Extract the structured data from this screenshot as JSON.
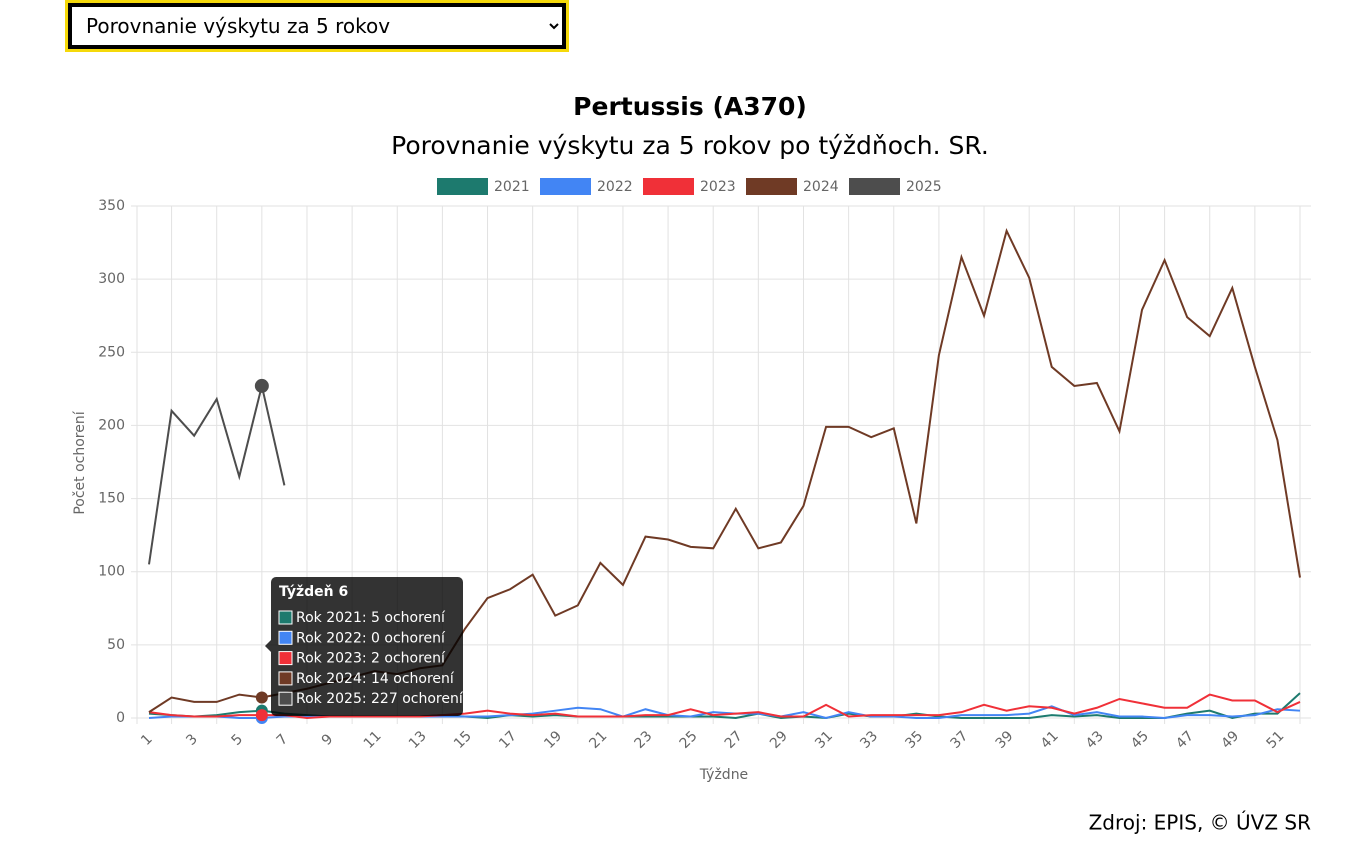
{
  "dropdown": {
    "selected": "Porovnanie výskytu za 5 rokov"
  },
  "chart_data": {
    "type": "line",
    "title": "Pertussis (A370)",
    "subtitle": "Porovnanie výskytu za 5 rokov po týždňoch. SR.",
    "x_label": "Týždne",
    "y_label": "Počet ochorení",
    "categories": [
      1,
      null,
      3,
      null,
      5,
      null,
      7,
      null,
      9,
      null,
      11,
      null,
      13,
      null,
      15,
      null,
      17,
      null,
      19,
      null,
      21,
      null,
      23,
      null,
      25,
      null,
      27,
      null,
      29,
      null,
      31,
      null,
      33,
      null,
      35,
      null,
      37,
      null,
      39,
      null,
      41,
      null,
      43,
      null,
      45,
      null,
      47,
      null,
      49,
      null,
      51,
      null
    ],
    "ylim": [
      0,
      350
    ],
    "yticks": [
      0,
      50,
      100,
      150,
      200,
      250,
      300,
      350
    ],
    "grid": true,
    "legend": "top",
    "series": [
      {
        "name": "2021",
        "color": "#1d7a6e",
        "values": [
          3,
          2,
          1,
          2,
          4,
          5,
          3,
          2,
          1,
          1,
          1,
          1,
          1,
          2,
          1,
          0,
          2,
          1,
          2,
          1,
          1,
          1,
          1,
          1,
          1,
          1,
          0,
          3,
          0,
          1,
          0,
          3,
          1,
          1,
          3,
          1,
          0,
          0,
          0,
          0,
          2,
          1,
          2,
          0,
          0,
          0,
          3,
          5,
          0,
          3,
          3,
          17
        ]
      },
      {
        "name": "2022",
        "color": "#4285f4",
        "values": [
          0,
          1,
          1,
          1,
          0,
          0,
          1,
          1,
          1,
          1,
          1,
          1,
          1,
          1,
          1,
          1,
          2,
          3,
          5,
          7,
          6,
          1,
          6,
          2,
          1,
          4,
          3,
          3,
          1,
          4,
          0,
          4,
          1,
          1,
          0,
          0,
          2,
          2,
          2,
          3,
          8,
          2,
          4,
          1,
          1,
          0,
          2,
          2,
          1,
          2,
          6,
          5
        ]
      },
      {
        "name": "2023",
        "color": "#f03038",
        "values": [
          4,
          2,
          1,
          1,
          2,
          2,
          2,
          0,
          1,
          1,
          1,
          1,
          1,
          2,
          3,
          5,
          3,
          2,
          3,
          1,
          1,
          1,
          2,
          2,
          6,
          2,
          3,
          4,
          1,
          1,
          9,
          1,
          2,
          2,
          2,
          2,
          4,
          9,
          5,
          8,
          7,
          3,
          7,
          13,
          10,
          7,
          7,
          16,
          12,
          12,
          4,
          11
        ]
      },
      {
        "name": "2024",
        "color": "#6f3a25",
        "values": [
          4,
          14,
          11,
          11,
          16,
          14,
          17,
          20,
          24,
          28,
          32,
          30,
          34,
          36,
          61,
          82,
          88,
          98,
          70,
          77,
          106,
          91,
          124,
          122,
          117,
          116,
          143,
          116,
          120,
          145,
          199,
          199,
          192,
          198,
          133,
          248,
          315,
          275,
          333,
          301,
          240,
          227,
          229,
          196,
          279,
          313,
          274,
          261,
          294,
          240,
          190,
          96
        ]
      },
      {
        "name": "2025",
        "color": "#4d4d4d",
        "values": [
          105,
          210,
          193,
          218,
          165,
          227,
          159,
          null,
          null,
          null,
          null,
          null,
          null,
          null,
          null,
          null,
          null,
          null,
          null,
          null,
          null,
          null,
          null,
          null,
          null,
          null,
          null,
          null,
          null,
          null,
          null,
          null,
          null,
          null,
          null,
          null,
          null,
          null,
          null,
          null,
          null,
          null,
          null,
          null,
          null,
          null,
          null,
          null,
          null,
          null,
          null,
          null
        ]
      }
    ],
    "tooltip": {
      "index": 5,
      "title": "Týždeň 6",
      "items": [
        "Rok 2021: 5 ochorení",
        "Rok 2022: 0 ochorení",
        "Rok 2023: 2 ochorení",
        "Rok 2024: 14 ochorení",
        "Rok 2025: 227 ochorení"
      ]
    }
  },
  "source": "Zdroj: EPIS, © ÚVZ SR"
}
